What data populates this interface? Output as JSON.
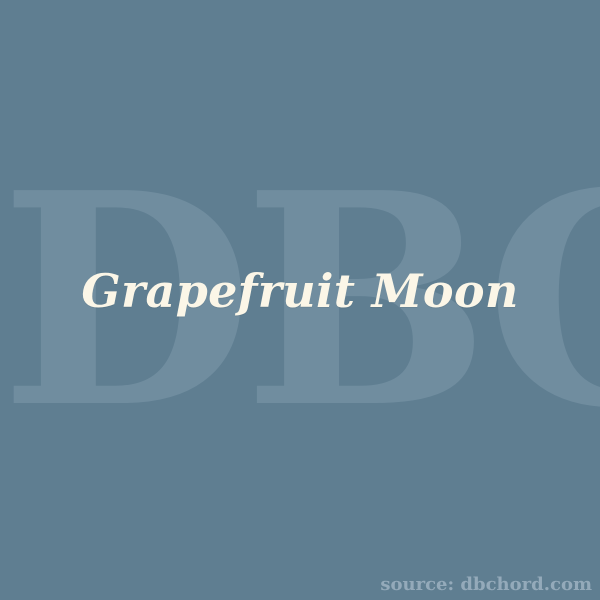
{
  "canvas": {
    "background_color": "#5f7e91"
  },
  "watermark": {
    "text": "DBC",
    "color": "#7995a7"
  },
  "title": {
    "text": "Grapefruit Moon",
    "color": "#fbf6e7"
  },
  "footer": {
    "source_text": "source: dbchord.com",
    "color": "#94aaba"
  }
}
